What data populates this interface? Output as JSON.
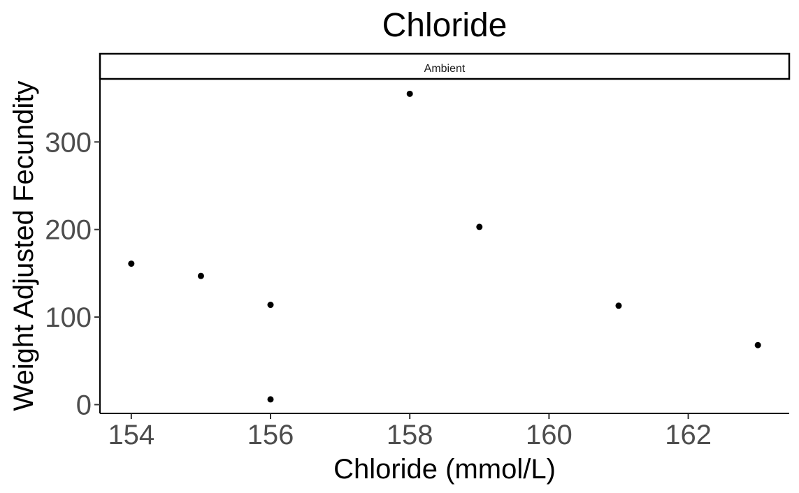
{
  "chart_data": {
    "type": "scatter",
    "title": "Chloride",
    "facet": "Ambient",
    "xlabel": "Chloride (mmol/L)",
    "ylabel": "Weight Adjusted Fecundity",
    "xlim": [
      153.55,
      163.45
    ],
    "ylim": [
      -10,
      372
    ],
    "xticks": [
      154,
      156,
      158,
      160,
      162
    ],
    "yticks": [
      0,
      100,
      200,
      300
    ],
    "grid": false,
    "point_color": "#000000",
    "points": [
      {
        "x": 154,
        "y": 161
      },
      {
        "x": 155,
        "y": 147
      },
      {
        "x": 156,
        "y": 114
      },
      {
        "x": 156,
        "y": 6
      },
      {
        "x": 158,
        "y": 355
      },
      {
        "x": 159,
        "y": 203
      },
      {
        "x": 161,
        "y": 113
      },
      {
        "x": 163,
        "y": 68
      }
    ]
  }
}
